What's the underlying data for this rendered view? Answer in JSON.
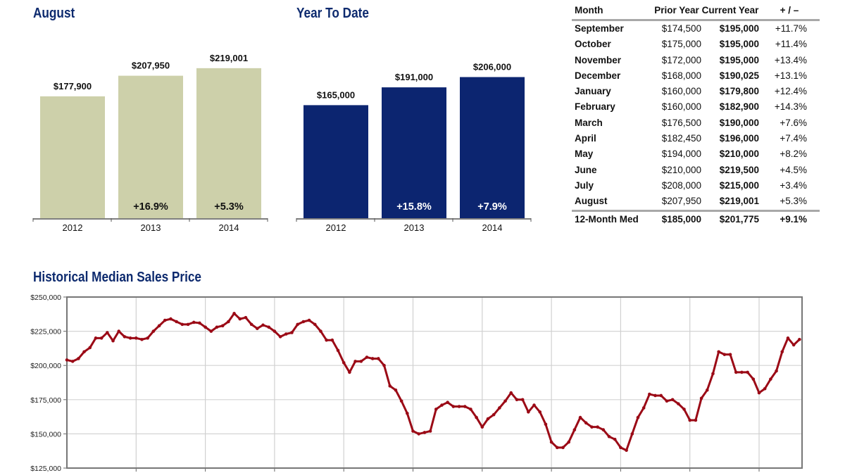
{
  "colors": {
    "august_bars": "#cdd0aa",
    "ytd_bars": "#0c2570",
    "title": "#0d2a6e",
    "line": "#9b0a16"
  },
  "chart_data": [
    {
      "type": "bar",
      "title": "August",
      "categories": [
        "2012",
        "2013",
        "2014"
      ],
      "values": [
        177900,
        207950,
        219001
      ],
      "value_labels": [
        "$177,900",
        "$207,950",
        "$219,001"
      ],
      "change_labels": [
        "",
        "+16.9%",
        "+5.3%"
      ],
      "ylim": [
        0,
        225000
      ]
    },
    {
      "type": "bar",
      "title": "Year To Date",
      "categories": [
        "2012",
        "2013",
        "2014"
      ],
      "values": [
        165000,
        191000,
        206000
      ],
      "value_labels": [
        "$165,000",
        "$191,000",
        "$206,000"
      ],
      "change_labels": [
        "",
        "+15.8%",
        "+7.9%"
      ],
      "ylim": [
        0,
        225000
      ]
    },
    {
      "type": "table",
      "headers": [
        "Month",
        "Prior Year",
        "Current Year",
        "+ / –"
      ],
      "rows": [
        [
          "September",
          "$174,500",
          "$195,000",
          "+11.7%"
        ],
        [
          "October",
          "$175,000",
          "$195,000",
          "+11.4%"
        ],
        [
          "November",
          "$172,000",
          "$195,000",
          "+13.4%"
        ],
        [
          "December",
          "$168,000",
          "$190,025",
          "+13.1%"
        ],
        [
          "January",
          "$160,000",
          "$179,800",
          "+12.4%"
        ],
        [
          "February",
          "$160,000",
          "$182,900",
          "+14.3%"
        ],
        [
          "March",
          "$176,500",
          "$190,000",
          "+7.6%"
        ],
        [
          "April",
          "$182,450",
          "$196,000",
          "+7.4%"
        ],
        [
          "May",
          "$194,000",
          "$210,000",
          "+8.2%"
        ],
        [
          "June",
          "$210,000",
          "$219,500",
          "+4.5%"
        ],
        [
          "July",
          "$208,000",
          "$215,000",
          "+3.4%"
        ],
        [
          "August",
          "$207,950",
          "$219,001",
          "+5.3%"
        ]
      ],
      "summary": [
        "12-Month Med",
        "$185,000",
        "$201,775",
        "+9.1%"
      ]
    },
    {
      "type": "line",
      "title": "Historical Median Sales Price",
      "ylim": [
        125000,
        250000
      ],
      "yticks": [
        "$250,000",
        "$225,000",
        "$200,000",
        "$175,000",
        "$150,000",
        "$125,000"
      ],
      "ytick_values": [
        250000,
        225000,
        200000,
        175000,
        150000,
        125000
      ],
      "grid": true,
      "vertical_gridlines_every_n_points": 12,
      "values": [
        204000,
        203000,
        205000,
        210000,
        213000,
        220000,
        220000,
        224000,
        218000,
        225000,
        221000,
        220000,
        220000,
        219000,
        220000,
        225000,
        229000,
        233000,
        234000,
        232000,
        230000,
        230000,
        231500,
        231000,
        228000,
        225000,
        228000,
        229000,
        232000,
        238000,
        234000,
        235000,
        230000,
        227000,
        229500,
        228000,
        225000,
        221000,
        223000,
        224000,
        230000,
        232000,
        233000,
        230000,
        225000,
        218500,
        218500,
        211000,
        202000,
        195000,
        203000,
        203000,
        206000,
        205000,
        205000,
        200000,
        185000,
        182000,
        174000,
        165000,
        152000,
        150000,
        151000,
        152000,
        168000,
        171000,
        173000,
        170000,
        170000,
        170000,
        168000,
        162000,
        155000,
        161000,
        164000,
        169000,
        174000,
        180000,
        175000,
        175000,
        166000,
        171000,
        166000,
        157000,
        144000,
        140000,
        140000,
        144000,
        153000,
        162000,
        158000,
        155000,
        155000,
        153000,
        148000,
        146000,
        140000,
        138000,
        150000,
        162000,
        169000,
        179000,
        178000,
        178000,
        174000,
        175000,
        172000,
        168000,
        160000,
        160000,
        176000,
        182000,
        194000,
        210000,
        208000,
        208000,
        195000,
        195000,
        195000,
        190000,
        180000,
        183000,
        190000,
        196000,
        210000,
        220000,
        215000,
        219001
      ]
    }
  ]
}
